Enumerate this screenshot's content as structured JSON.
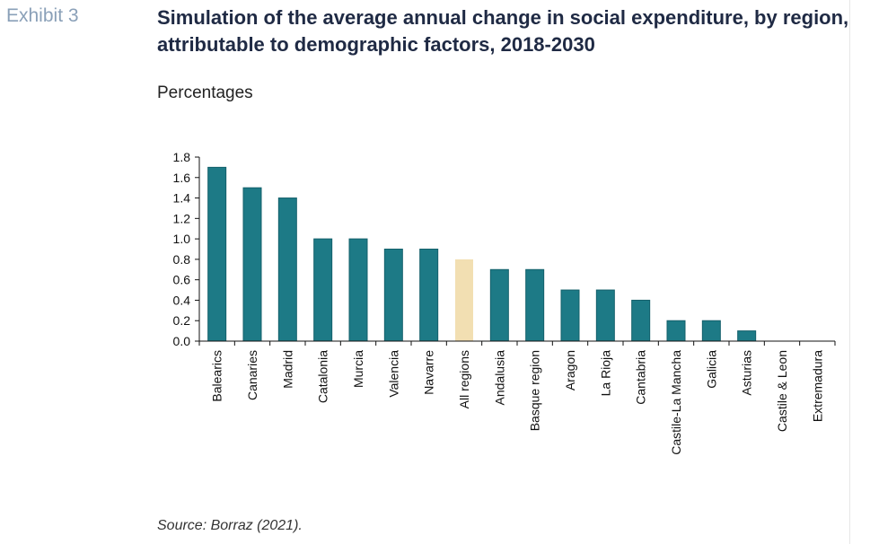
{
  "header": {
    "exhibit": "Exhibit 3",
    "title": "Simulation of the average annual change in social expenditure, by region, attributable to demographic factors, 2018-2030",
    "subtitle": "Percentages"
  },
  "footer": {
    "source": "Source: Borraz (2021)."
  },
  "colors": {
    "bar": "#1d7a86",
    "highlight": "#f2dfb2",
    "axis": "#111111"
  },
  "chart_data": {
    "type": "bar",
    "title": "Simulation of the average annual change in social expenditure, by region, attributable to demographic factors, 2018-2030",
    "ylabel": "Percentages",
    "xlabel": "",
    "categories": [
      "Balearics",
      "Canaries",
      "Madrid",
      "Catalonia",
      "Murcia",
      "Valencia",
      "Navarre",
      "All regions",
      "Andalusia",
      "Basque region",
      "Aragon",
      "La Rioja",
      "Cantabria",
      "Castile-La Mancha",
      "Galicia",
      "Asturias",
      "Castile & Leon",
      "Extremadura"
    ],
    "values": [
      1.7,
      1.5,
      1.4,
      1.0,
      1.0,
      0.9,
      0.9,
      0.8,
      0.7,
      0.7,
      0.5,
      0.5,
      0.4,
      0.2,
      0.2,
      0.1,
      0.0,
      0.0
    ],
    "highlight_category": "All regions",
    "ylim": [
      0,
      1.8
    ],
    "yticks": [
      "0.0",
      "0.2",
      "0.4",
      "0.6",
      "0.8",
      "1.0",
      "1.2",
      "1.4",
      "1.6",
      "1.8"
    ],
    "grid": false,
    "legend": "none"
  }
}
